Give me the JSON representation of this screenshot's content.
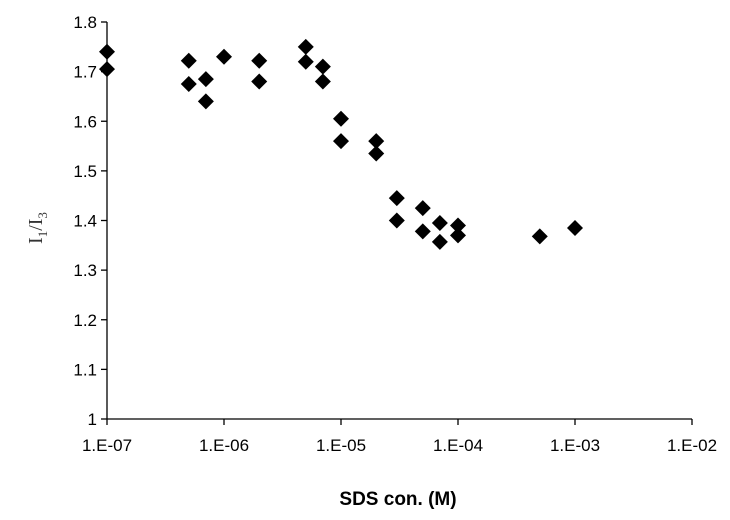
{
  "chart_data": {
    "type": "scatter",
    "title": "",
    "xlabel": "SDS con. (M)",
    "ylabel": {
      "main": "I",
      "sub1": "1",
      "sep": "/I",
      "sub2": "3"
    },
    "x_scale": "log",
    "xlim": [
      1e-07,
      0.01
    ],
    "ylim": [
      1,
      1.8
    ],
    "x_ticks": [
      1e-07,
      1e-06,
      1e-05,
      0.0001,
      0.001,
      0.01
    ],
    "x_tick_labels": [
      "1.E-07",
      "1.E-06",
      "1.E-05",
      "1.E-04",
      "1.E-03",
      "1.E-02"
    ],
    "y_ticks": [
      1,
      1.1,
      1.2,
      1.3,
      1.4,
      1.5,
      1.6,
      1.7,
      1.8
    ],
    "y_tick_labels": [
      "1",
      "1.1",
      "1.2",
      "1.3",
      "1.4",
      "1.5",
      "1.6",
      "1.7",
      "1.8"
    ],
    "grid": false,
    "legend": "none",
    "marker": "diamond",
    "marker_color": "#000000",
    "series": [
      {
        "x": [
          1e-07,
          1e-07,
          5e-07,
          5e-07,
          7e-07,
          7e-07,
          1e-06,
          2e-06,
          2e-06,
          5e-06,
          5e-06,
          7e-06,
          7e-06,
          1e-05,
          1e-05,
          2e-05,
          2e-05,
          3e-05,
          3e-05,
          5e-05,
          5e-05,
          7e-05,
          7e-05,
          0.0001,
          0.0001,
          0.0005,
          0.001
        ],
        "y": [
          1.74,
          1.705,
          1.722,
          1.675,
          1.685,
          1.64,
          1.73,
          1.722,
          1.68,
          1.75,
          1.72,
          1.71,
          1.68,
          1.605,
          1.56,
          1.56,
          1.535,
          1.445,
          1.4,
          1.425,
          1.378,
          1.395,
          1.357,
          1.39,
          1.37,
          1.368,
          1.385
        ]
      }
    ]
  }
}
